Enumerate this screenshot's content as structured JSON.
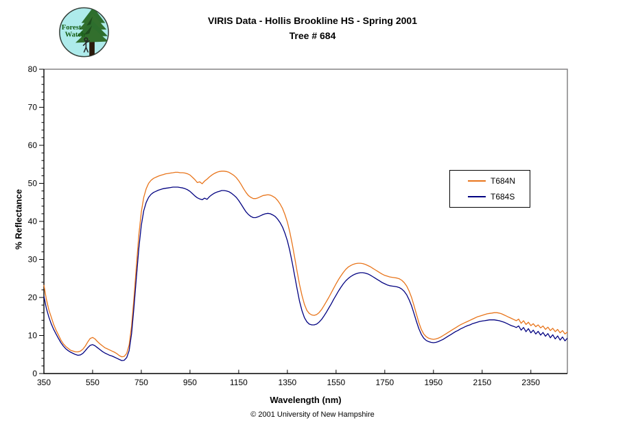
{
  "logo": {
    "name": "forest-watch-logo",
    "text_line1": "Forest",
    "text_line2": "Watch",
    "bg_color": "#aeebeb",
    "tree_color": "#2d6e2d",
    "trunk_color": "#2a1a0c",
    "text_color": "#155e15"
  },
  "footer": {
    "copyright": "© 2001 University of New Hampshire"
  },
  "chart_data": {
    "type": "line",
    "title": "VIRIS Data - Hollis Brookline HS - Spring 2001",
    "subtitle": "Tree # 684",
    "xlabel": "Wavelength (nm)",
    "ylabel": "% Reflectance",
    "xlim": [
      350,
      2500
    ],
    "ylim": [
      0,
      80
    ],
    "x_major_ticks": [
      350,
      550,
      750,
      950,
      1150,
      1350,
      1550,
      1750,
      1950,
      2150,
      2350
    ],
    "y_major_ticks": [
      0,
      10,
      20,
      30,
      40,
      50,
      60,
      70,
      80
    ],
    "y_minor_unit": 2,
    "grid": false,
    "axis_color": "#000000",
    "border_color": "#848284",
    "legend": {
      "position": "right-middle",
      "entries": [
        {
          "label": "T684N",
          "color": "#e8741a"
        },
        {
          "label": "T684S",
          "color": "#000080"
        }
      ]
    },
    "x_start": 350,
    "x_step": 10,
    "series": [
      {
        "name": "T684N",
        "color": "#e8741a",
        "values": [
          23.3,
          19.6,
          16.8,
          14.9,
          12.9,
          11.4,
          10.1,
          8.8,
          7.8,
          7.1,
          6.6,
          6.1,
          5.9,
          5.7,
          5.7,
          5.9,
          6.4,
          7.2,
          8.3,
          9.2,
          9.5,
          9.1,
          8.4,
          7.8,
          7.3,
          6.8,
          6.5,
          6.2,
          5.9,
          5.6,
          5.2,
          4.7,
          4.4,
          4.5,
          5.3,
          7.5,
          12.5,
          20.0,
          28.5,
          36.5,
          42.5,
          46.3,
          48.6,
          50.0,
          50.8,
          51.3,
          51.6,
          51.9,
          52.1,
          52.3,
          52.5,
          52.6,
          52.7,
          52.8,
          52.9,
          52.9,
          52.8,
          52.8,
          52.7,
          52.5,
          52.2,
          51.6,
          51.0,
          50.2,
          50.4,
          49.9,
          50.6,
          51.1,
          51.7,
          52.2,
          52.6,
          52.9,
          53.1,
          53.2,
          53.2,
          53.1,
          52.9,
          52.5,
          52.1,
          51.5,
          50.7,
          49.7,
          48.6,
          47.6,
          46.8,
          46.3,
          46.0,
          46.0,
          46.2,
          46.5,
          46.8,
          46.9,
          47.0,
          46.9,
          46.6,
          46.2,
          45.5,
          44.6,
          43.4,
          41.8,
          39.8,
          37.2,
          34.0,
          30.5,
          26.8,
          23.4,
          20.5,
          18.2,
          16.6,
          15.8,
          15.4,
          15.3,
          15.5,
          16.0,
          16.8,
          17.8,
          18.9,
          20.0,
          21.2,
          22.4,
          23.6,
          24.7,
          25.7,
          26.6,
          27.4,
          28.0,
          28.4,
          28.7,
          28.9,
          29.0,
          29.0,
          28.9,
          28.7,
          28.4,
          28.1,
          27.7,
          27.3,
          26.9,
          26.5,
          26.1,
          25.8,
          25.6,
          25.4,
          25.3,
          25.2,
          25.1,
          24.9,
          24.5,
          23.9,
          23.0,
          21.7,
          20.0,
          17.9,
          15.6,
          13.4,
          11.6,
          10.4,
          9.7,
          9.3,
          9.1,
          9.0,
          9.1,
          9.3,
          9.6,
          10.0,
          10.4,
          10.8,
          11.2,
          11.6,
          12.0,
          12.4,
          12.8,
          13.1,
          13.4,
          13.7,
          14.0,
          14.3,
          14.6,
          14.9,
          15.1,
          15.3,
          15.5,
          15.7,
          15.8,
          15.9,
          16.0,
          16.0,
          15.9,
          15.7,
          15.4,
          15.1,
          14.8,
          14.5,
          14.2,
          13.9,
          14.3,
          13.2,
          13.9,
          12.9,
          13.5,
          12.6,
          13.1,
          12.3,
          12.8,
          12.0,
          12.5,
          11.6,
          12.2,
          11.3,
          11.9,
          11.0,
          11.6,
          10.7,
          11.3,
          10.4,
          10.9
        ]
      },
      {
        "name": "T684S",
        "color": "#000080",
        "values": [
          20.3,
          17.2,
          14.9,
          13.1,
          11.6,
          10.4,
          9.2,
          8.1,
          7.2,
          6.5,
          6.0,
          5.6,
          5.3,
          5.0,
          4.8,
          4.9,
          5.3,
          6.0,
          6.8,
          7.4,
          7.6,
          7.3,
          6.8,
          6.3,
          5.8,
          5.4,
          5.1,
          4.8,
          4.6,
          4.3,
          4.0,
          3.7,
          3.4,
          3.5,
          4.2,
          6.0,
          10.5,
          17.5,
          25.5,
          33.0,
          39.0,
          42.8,
          45.0,
          46.3,
          47.1,
          47.6,
          47.9,
          48.2,
          48.4,
          48.6,
          48.7,
          48.8,
          48.9,
          49.0,
          49.0,
          49.0,
          48.9,
          48.8,
          48.6,
          48.3,
          47.9,
          47.3,
          46.7,
          46.2,
          45.9,
          45.7,
          46.1,
          45.8,
          46.5,
          47.0,
          47.4,
          47.7,
          47.9,
          48.1,
          48.1,
          48.0,
          47.8,
          47.4,
          46.9,
          46.3,
          45.5,
          44.5,
          43.5,
          42.5,
          41.8,
          41.3,
          41.0,
          41.0,
          41.2,
          41.5,
          41.8,
          42.0,
          42.1,
          42.0,
          41.7,
          41.3,
          40.6,
          39.7,
          38.5,
          36.9,
          34.9,
          32.3,
          29.1,
          25.7,
          22.2,
          19.0,
          16.5,
          14.7,
          13.6,
          13.0,
          12.8,
          12.8,
          13.0,
          13.5,
          14.2,
          15.1,
          16.1,
          17.2,
          18.3,
          19.5,
          20.6,
          21.7,
          22.7,
          23.6,
          24.4,
          25.0,
          25.5,
          25.9,
          26.2,
          26.4,
          26.5,
          26.5,
          26.4,
          26.2,
          25.9,
          25.5,
          25.1,
          24.7,
          24.3,
          23.9,
          23.6,
          23.3,
          23.1,
          23.0,
          22.9,
          22.8,
          22.6,
          22.2,
          21.6,
          20.7,
          19.4,
          17.8,
          15.8,
          13.7,
          11.8,
          10.3,
          9.3,
          8.7,
          8.4,
          8.2,
          8.1,
          8.2,
          8.4,
          8.7,
          9.0,
          9.4,
          9.8,
          10.2,
          10.6,
          11.0,
          11.3,
          11.7,
          12.0,
          12.3,
          12.6,
          12.8,
          13.1,
          13.3,
          13.5,
          13.7,
          13.8,
          13.9,
          14.0,
          14.1,
          14.1,
          14.1,
          14.0,
          13.9,
          13.7,
          13.5,
          13.2,
          12.9,
          12.6,
          12.4,
          12.1,
          12.5,
          11.4,
          12.1,
          11.0,
          11.8,
          10.7,
          11.4,
          10.4,
          11.1,
          10.1,
          10.8,
          9.8,
          10.5,
          9.4,
          10.2,
          9.1,
          9.9,
          8.8,
          9.6,
          8.6,
          9.3
        ]
      }
    ]
  }
}
